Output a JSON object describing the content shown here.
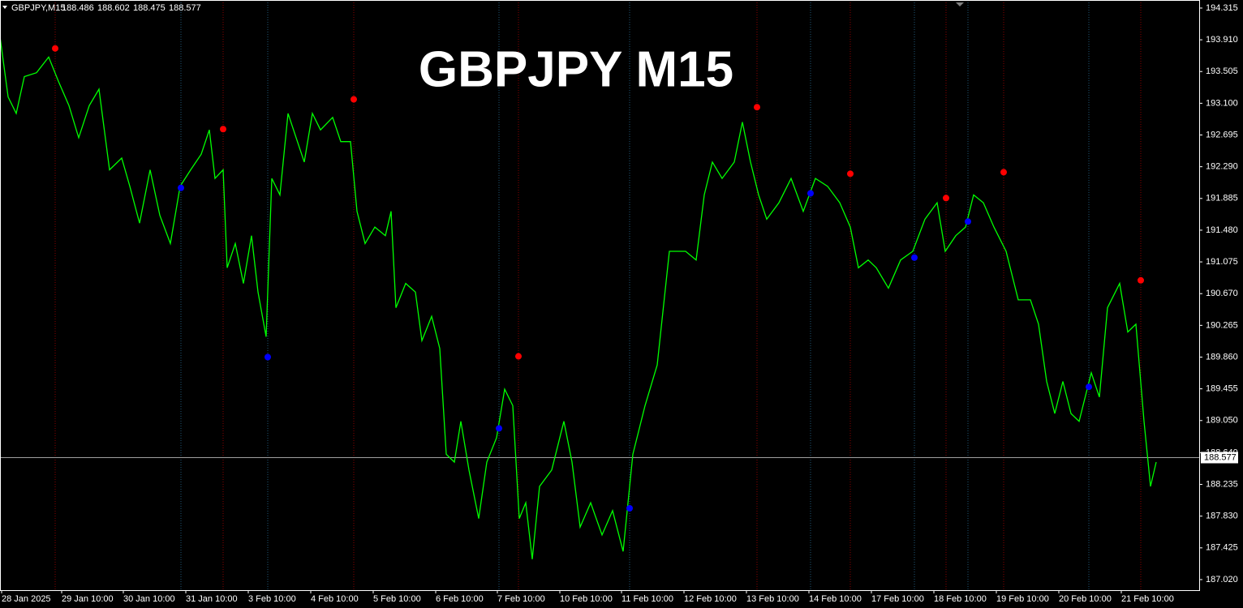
{
  "chart_data": {
    "type": "line",
    "title": "GBPJPY M15",
    "symbol": "GBPJPY,M15",
    "ohlc": [
      188.486,
      188.602,
      188.475,
      188.577
    ],
    "last_price": 188.577,
    "background": "#000000",
    "xlim": [
      0,
      1478
    ],
    "ylim": [
      186.885,
      194.418
    ],
    "yticks": [
      194.315,
      {
        "value": 193.91,
        "label": "193.910"
      },
      193.505,
      {
        "value": 193.1,
        "label": "193.100"
      },
      192.695,
      {
        "value": 192.29,
        "label": "192.290"
      },
      191.885,
      {
        "value": 191.48,
        "label": "191.480"
      },
      191.075,
      {
        "value": 190.67,
        "label": "190.670"
      },
      190.265,
      {
        "value": 189.86,
        "label": "189.860"
      },
      189.455,
      {
        "value": 189.05,
        "label": "189.050"
      },
      {
        "value": 188.64,
        "label": "188.640"
      },
      188.235,
      {
        "value": 187.83,
        "label": "187.830"
      },
      187.425,
      {
        "value": 187.02,
        "label": "187.020"
      }
    ],
    "xticks": [
      {
        "value": 2,
        "label": "28 Jan 2025"
      },
      {
        "value": 76,
        "label": "29 Jan 10:00"
      },
      {
        "value": 152,
        "label": "30 Jan 10:00"
      },
      {
        "value": 229,
        "label": "31 Jan 10:00"
      },
      {
        "value": 306,
        "label": "3 Feb 10:00"
      },
      {
        "value": 383,
        "label": "4 Feb 10:00"
      },
      {
        "value": 460,
        "label": "5 Feb 10:00"
      },
      {
        "value": 537,
        "label": "6 Feb 10:00"
      },
      {
        "value": 613,
        "label": "7 Feb 10:00"
      },
      {
        "value": 690,
        "label": "10 Feb 10:00"
      },
      {
        "value": 766,
        "label": "11 Feb 10:00"
      },
      {
        "value": 843,
        "label": "12 Feb 10:00"
      },
      {
        "value": 920,
        "label": "13 Feb 10:00"
      },
      {
        "value": 997,
        "label": "14 Feb 10:00"
      },
      {
        "value": 1074,
        "label": "17 Feb 10:00"
      },
      {
        "value": 1151,
        "label": "18 Feb 10:00"
      },
      {
        "value": 1228,
        "label": "19 Feb 10:00"
      },
      {
        "value": 1305,
        "label": "20 Feb 10:00"
      },
      {
        "value": 1382,
        "label": "21 Feb 10:00"
      }
    ],
    "price": {
      "color": "#00ff00",
      "x": [
        0,
        10,
        20,
        30,
        45,
        60,
        72,
        85,
        97,
        110,
        122,
        135,
        150,
        160,
        172,
        185,
        197,
        210,
        222,
        235,
        248,
        258,
        265,
        275,
        280,
        290,
        300,
        310,
        318,
        328,
        335,
        345,
        355,
        365,
        375,
        385,
        395,
        410,
        420,
        432,
        440,
        450,
        462,
        475,
        482,
        488,
        500,
        512,
        520,
        532,
        542,
        550,
        560,
        568,
        578,
        590,
        600,
        612,
        622,
        632,
        640,
        648,
        656,
        665,
        680,
        695,
        705,
        715,
        728,
        742,
        755,
        768,
        780,
        795,
        810,
        825,
        845,
        858,
        868,
        878,
        890,
        905,
        915,
        925,
        935,
        945,
        960,
        975,
        990,
        1005,
        1020,
        1035,
        1048,
        1058,
        1070,
        1080,
        1095,
        1110,
        1125,
        1140,
        1155,
        1165,
        1178,
        1190,
        1200,
        1212,
        1225,
        1240,
        1255,
        1270,
        1280,
        1290,
        1300,
        1310,
        1320,
        1330,
        1345,
        1355,
        1365,
        1380,
        1390,
        1400,
        1410,
        1418,
        1425
      ],
      "values": [
        193.95,
        193.18,
        192.97,
        193.44,
        193.49,
        193.69,
        193.38,
        193.07,
        192.66,
        193.07,
        193.28,
        192.25,
        192.4,
        192.04,
        191.57,
        192.25,
        191.67,
        191.31,
        192.04,
        192.25,
        192.45,
        192.76,
        192.14,
        192.25,
        191.0,
        191.31,
        190.8,
        191.41,
        190.69,
        190.12,
        192.14,
        191.93,
        192.97,
        192.66,
        192.35,
        192.97,
        192.76,
        192.92,
        192.61,
        192.61,
        191.72,
        191.31,
        191.52,
        191.41,
        191.72,
        190.49,
        190.8,
        190.69,
        190.07,
        190.38,
        189.97,
        188.62,
        188.52,
        189.04,
        188.42,
        187.8,
        188.52,
        188.83,
        189.45,
        189.24,
        187.8,
        188.0,
        187.28,
        188.21,
        188.42,
        189.04,
        188.52,
        187.69,
        188.0,
        187.59,
        187.9,
        187.38,
        188.62,
        189.24,
        189.76,
        191.21,
        191.21,
        191.1,
        191.93,
        192.35,
        192.14,
        192.35,
        192.86,
        192.35,
        191.93,
        191.62,
        191.83,
        192.14,
        191.72,
        192.14,
        192.04,
        191.83,
        191.52,
        191.0,
        191.1,
        191.0,
        190.74,
        191.1,
        191.21,
        191.62,
        191.83,
        191.21,
        191.41,
        191.52,
        191.93,
        191.83,
        191.52,
        191.21,
        190.59,
        190.59,
        190.28,
        189.55,
        189.14,
        189.55,
        189.14,
        189.04,
        189.66,
        189.35,
        190.49,
        190.8,
        190.18,
        190.28,
        189.04,
        188.21,
        188.52
      ]
    },
    "sell_signals": {
      "color": "#ff0000",
      "x": [
        68,
        275,
        436,
        639,
        933,
        1048,
        1166,
        1237,
        1406
      ],
      "values": [
        193.8,
        192.77,
        193.15,
        189.87,
        193.05,
        192.2,
        191.89,
        192.22,
        190.84
      ]
    },
    "buy_signals": {
      "color": "#0000ff",
      "x": [
        223,
        330,
        615,
        776,
        999,
        1127,
        1193,
        1342
      ],
      "values": [
        192.02,
        189.86,
        188.95,
        187.93,
        191.95,
        191.13,
        191.59,
        189.48
      ]
    }
  }
}
